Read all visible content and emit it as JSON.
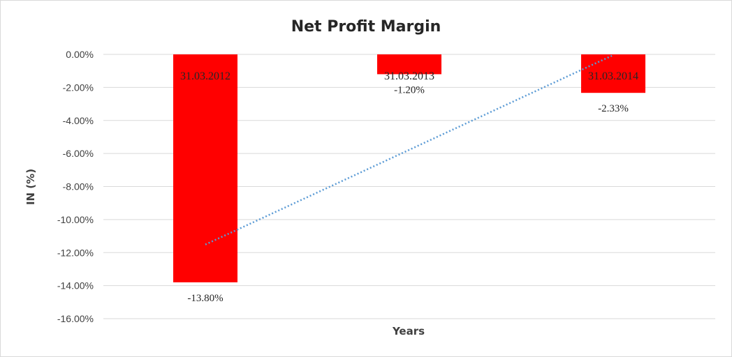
{
  "chart_data": {
    "type": "bar",
    "title": "Net Profit Margin",
    "xlabel": "Years",
    "ylabel": "IN (%)",
    "categories": [
      "31.03.2012",
      "31.03.2013",
      "31.03.2014"
    ],
    "series": [
      {
        "values": [
          -13.8,
          -1.2,
          -2.33
        ]
      }
    ],
    "data_labels": [
      "-13.80%",
      "-1.20%",
      "-2.33%"
    ],
    "ylim": [
      -16,
      0
    ],
    "yticks": [
      "0.00%",
      "-2.00%",
      "-4.00%",
      "-6.00%",
      "-8.00%",
      "-10.00%",
      "-12.00%",
      "-14.00%",
      "-16.00%"
    ],
    "ytick_values": [
      0,
      -2,
      -4,
      -6,
      -8,
      -10,
      -12,
      -14,
      -16
    ],
    "grid": true,
    "trendline": "linear",
    "colors": {
      "bar": "#ff0000",
      "trendline": "#5b9bd5",
      "grid": "#d9d9d9"
    }
  }
}
